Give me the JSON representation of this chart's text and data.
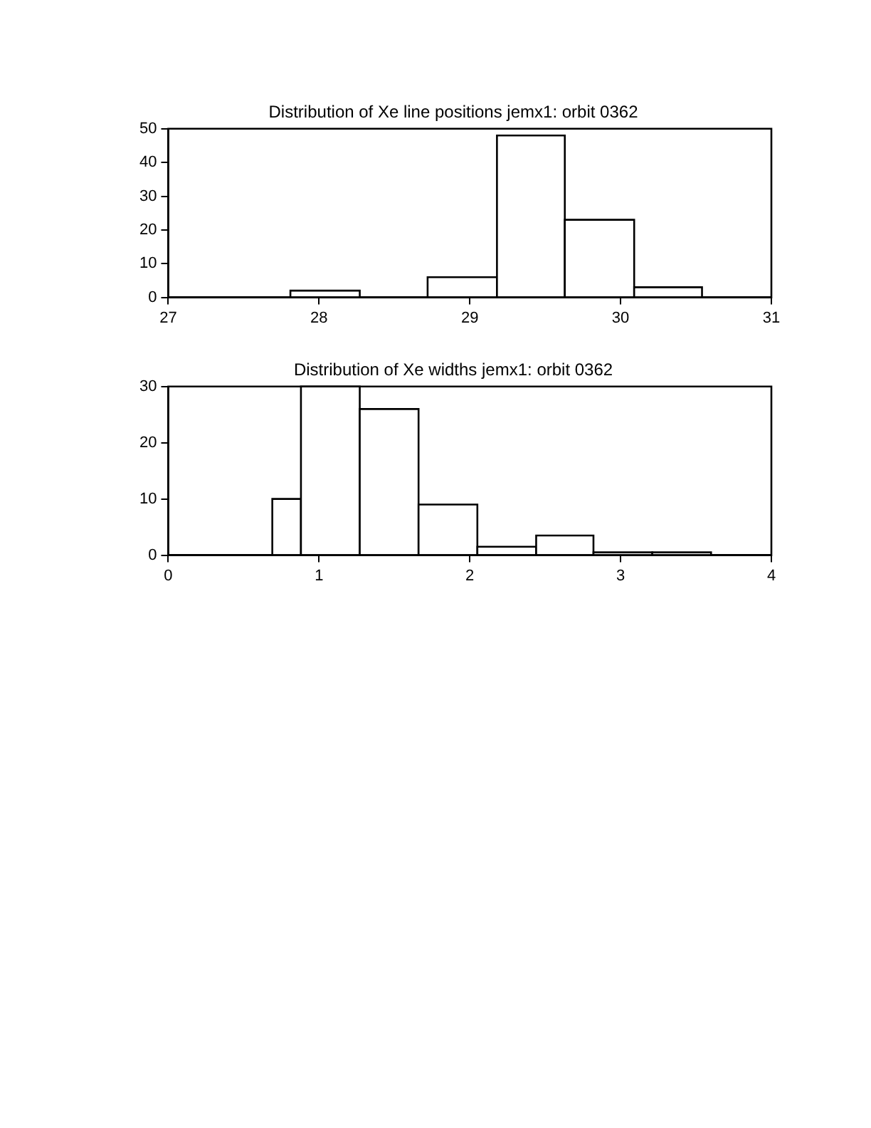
{
  "chart_data": [
    {
      "type": "histogram",
      "title": "Distribution of Xe line positions jemx1: orbit 0362",
      "bins": [
        27.81,
        28.27,
        28.72,
        29.18,
        29.63,
        30.09,
        30.54
      ],
      "values": [
        2,
        0,
        6,
        48,
        23,
        3
      ],
      "color": "#000000",
      "xlim": [
        27,
        31
      ],
      "xticks": [
        27,
        28,
        29,
        30,
        31
      ],
      "ylim": [
        0,
        50
      ],
      "yticks": [
        0,
        10,
        20,
        30,
        40,
        50
      ],
      "grid": false,
      "legend": false
    },
    {
      "type": "histogram",
      "title": "Distribution of Xe widths jemx1: orbit 0362",
      "bins": [
        0.69,
        0.88,
        1.27,
        1.66,
        2.05,
        2.44,
        2.82,
        3.21,
        3.6
      ],
      "values": [
        10,
        30,
        26,
        9,
        1.5,
        3.5,
        0.5,
        0.5
      ],
      "color": "#000000",
      "xlim": [
        0,
        4
      ],
      "xticks": [
        0,
        1,
        2,
        3,
        4
      ],
      "ylim": [
        0,
        30
      ],
      "yticks": [
        0,
        10,
        20,
        30
      ],
      "grid": false,
      "legend": false
    }
  ]
}
